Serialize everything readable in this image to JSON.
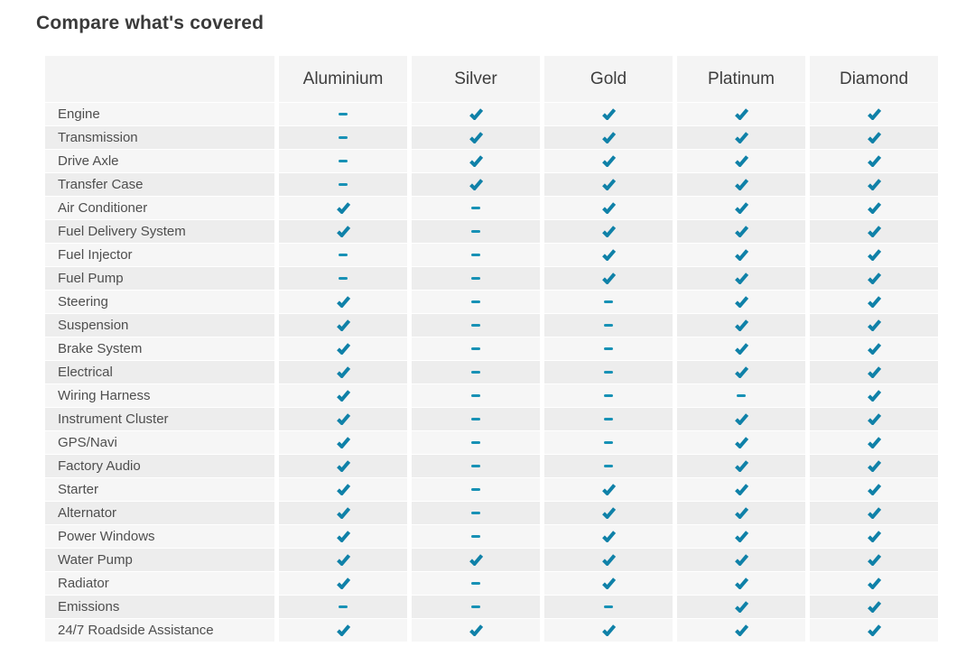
{
  "page": {
    "title": "Compare what's covered"
  },
  "table": {
    "columns": [
      "Aluminium",
      "Silver",
      "Gold",
      "Platinum",
      "Diamond"
    ],
    "rows": [
      {
        "feature": "Engine",
        "values": [
          "dash",
          "check",
          "check",
          "check",
          "check"
        ]
      },
      {
        "feature": "Transmission",
        "values": [
          "dash",
          "check",
          "check",
          "check",
          "check"
        ]
      },
      {
        "feature": "Drive Axle",
        "values": [
          "dash",
          "check",
          "check",
          "check",
          "check"
        ]
      },
      {
        "feature": "Transfer Case",
        "values": [
          "dash",
          "check",
          "check",
          "check",
          "check"
        ]
      },
      {
        "feature": "Air Conditioner",
        "values": [
          "check",
          "dash",
          "check",
          "check",
          "check"
        ]
      },
      {
        "feature": "Fuel Delivery System",
        "values": [
          "check",
          "dash",
          "check",
          "check",
          "check"
        ]
      },
      {
        "feature": "Fuel Injector",
        "values": [
          "dash",
          "dash",
          "check",
          "check",
          "check"
        ]
      },
      {
        "feature": "Fuel Pump",
        "values": [
          "dash",
          "dash",
          "check",
          "check",
          "check"
        ]
      },
      {
        "feature": "Steering",
        "values": [
          "check",
          "dash",
          "dash",
          "check",
          "check"
        ]
      },
      {
        "feature": "Suspension",
        "values": [
          "check",
          "dash",
          "dash",
          "check",
          "check"
        ]
      },
      {
        "feature": "Brake System",
        "values": [
          "check",
          "dash",
          "dash",
          "check",
          "check"
        ]
      },
      {
        "feature": "Electrical",
        "values": [
          "check",
          "dash",
          "dash",
          "check",
          "check"
        ]
      },
      {
        "feature": "Wiring Harness",
        "values": [
          "check",
          "dash",
          "dash",
          "dash",
          "check"
        ]
      },
      {
        "feature": "Instrument Cluster",
        "values": [
          "check",
          "dash",
          "dash",
          "check",
          "check"
        ]
      },
      {
        "feature": "GPS/Navi",
        "values": [
          "check",
          "dash",
          "dash",
          "check",
          "check"
        ]
      },
      {
        "feature": "Factory Audio",
        "values": [
          "check",
          "dash",
          "dash",
          "check",
          "check"
        ]
      },
      {
        "feature": "Starter",
        "values": [
          "check",
          "dash",
          "check",
          "check",
          "check"
        ]
      },
      {
        "feature": "Alternator",
        "values": [
          "check",
          "dash",
          "check",
          "check",
          "check"
        ]
      },
      {
        "feature": "Power Windows",
        "values": [
          "check",
          "dash",
          "check",
          "check",
          "check"
        ]
      },
      {
        "feature": "Water Pump",
        "values": [
          "check",
          "check",
          "check",
          "check",
          "check"
        ]
      },
      {
        "feature": "Radiator",
        "values": [
          "check",
          "dash",
          "check",
          "check",
          "check"
        ]
      },
      {
        "feature": "Emissions",
        "values": [
          "dash",
          "dash",
          "dash",
          "check",
          "check"
        ]
      },
      {
        "feature": "24/7 Roadside Assistance",
        "values": [
          "check",
          "check",
          "check",
          "check",
          "check"
        ]
      }
    ]
  },
  "colors": {
    "check": "#0f81a8",
    "dash": "#1791b5",
    "header_bg": "#f4f4f4",
    "row_light": "#f6f6f6",
    "row_dark": "#ededed",
    "title_text": "#3a3a3a"
  }
}
